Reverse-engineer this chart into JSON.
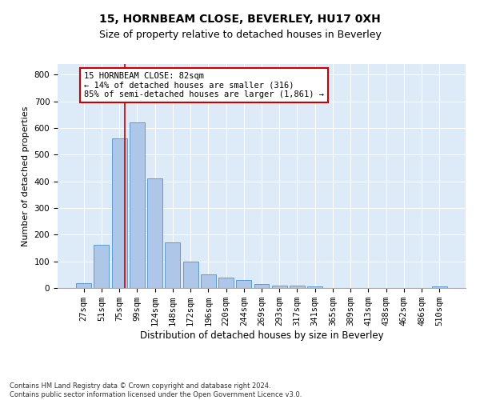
{
  "title1": "15, HORNBEAM CLOSE, BEVERLEY, HU17 0XH",
  "title2": "Size of property relative to detached houses in Beverley",
  "xlabel": "Distribution of detached houses by size in Beverley",
  "ylabel": "Number of detached properties",
  "footnote": "Contains HM Land Registry data © Crown copyright and database right 2024.\nContains public sector information licensed under the Open Government Licence v3.0.",
  "categories": [
    "27sqm",
    "51sqm",
    "75sqm",
    "99sqm",
    "124sqm",
    "148sqm",
    "172sqm",
    "196sqm",
    "220sqm",
    "244sqm",
    "269sqm",
    "293sqm",
    "317sqm",
    "341sqm",
    "365sqm",
    "389sqm",
    "413sqm",
    "438sqm",
    "462sqm",
    "486sqm",
    "510sqm"
  ],
  "values": [
    18,
    163,
    560,
    620,
    410,
    170,
    100,
    52,
    40,
    30,
    14,
    8,
    9,
    5,
    0,
    0,
    0,
    0,
    0,
    0,
    7
  ],
  "bar_color": "#aec6e8",
  "bar_edge_color": "#5b9bd5",
  "vline_color": "#cc0000",
  "annotation_text": "15 HORNBEAM CLOSE: 82sqm\n← 14% of detached houses are smaller (316)\n85% of semi-detached houses are larger (1,861) →",
  "annotation_box_color": "#ffffff",
  "annotation_box_edge": "#cc0000",
  "ylim": [
    0,
    840
  ],
  "yticks": [
    0,
    100,
    200,
    300,
    400,
    500,
    600,
    700,
    800
  ],
  "background_color": "#ddeaf7",
  "grid_color": "#ffffff",
  "title1_fontsize": 10,
  "title2_fontsize": 9,
  "xlabel_fontsize": 8.5,
  "ylabel_fontsize": 8,
  "tick_fontsize": 7.5,
  "annotation_fontsize": 7.5,
  "footnote_fontsize": 6
}
